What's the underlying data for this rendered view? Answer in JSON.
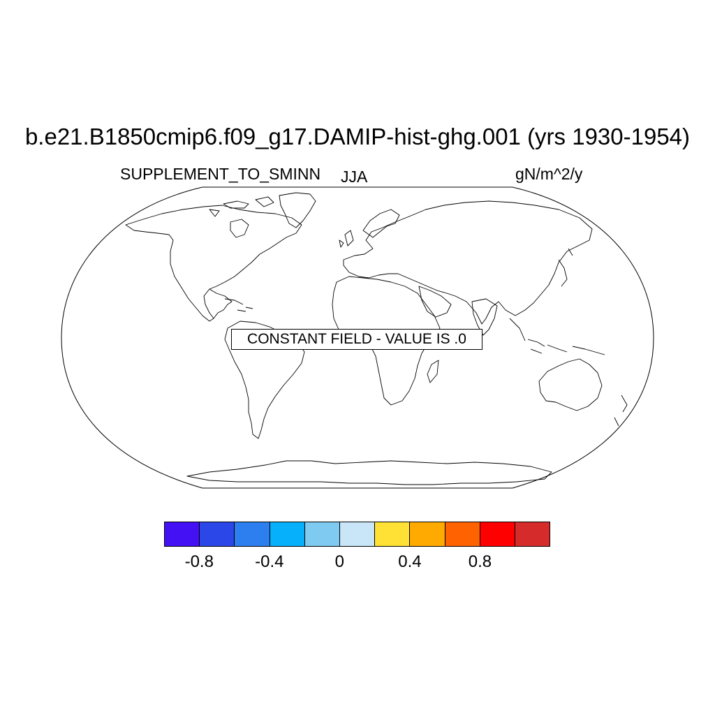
{
  "header": {
    "title": "b.e21.B1850cmip6.f09_g17.DAMIP-hist-ghg.001 (yrs 1930-1954)",
    "left_label": "SUPPLEMENT_TO_SMINN",
    "center_label": "JJA",
    "right_label": "gN/m^2/y"
  },
  "map": {
    "projection": "Robinson",
    "features": [
      "coastlines"
    ],
    "notice": "CONSTANT FIELD - VALUE IS .0"
  },
  "colorbar": {
    "colors": [
      "#4410f4",
      "#2b47e8",
      "#2d7ff0",
      "#06b0fb",
      "#7ecaf0",
      "#c8e6f7",
      "#ffe135",
      "#ffaa00",
      "#ff6200",
      "#ff0000",
      "#d62b2b"
    ],
    "ticks": [
      {
        "value": -0.8,
        "label": "-0.8"
      },
      {
        "value": -0.4,
        "label": "-0.4"
      },
      {
        "value": 0,
        "label": "0"
      },
      {
        "value": 0.4,
        "label": "0.4"
      },
      {
        "value": 0.8,
        "label": "0.8"
      }
    ]
  }
}
